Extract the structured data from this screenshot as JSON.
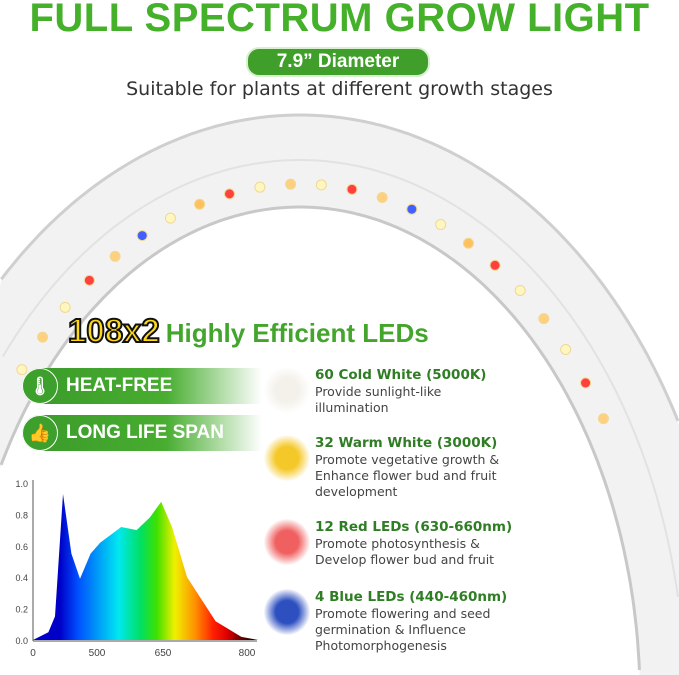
{
  "header": {
    "title": "FULL SPECTRUM GROW LIGHT",
    "badge": "7.9” Diameter",
    "subtitle": "Suitable for plants at different growth stages"
  },
  "leds": {
    "count": "108x2",
    "label": "Highly Efficient LEDs"
  },
  "badges": [
    {
      "icon": "thermometer-icon",
      "label": "HEAT-FREE"
    },
    {
      "icon": "thumbs-up-icon",
      "label": "LONG LIFE SPAN"
    }
  ],
  "features": [
    {
      "title": "60 Cold White (5000K)",
      "desc": "Provide sunlight-like illumination",
      "color": "#f3f1ea"
    },
    {
      "title": "32 Warm White (3000K)",
      "desc": "Promote vegetative growth & Enhance flower bud and fruit development",
      "color": "#f5c829"
    },
    {
      "title": "12 Red LEDs (630-660nm)",
      "desc": "Promote photosynthesis & Develop flower bud and fruit",
      "color": "#f06060"
    },
    {
      "title": "4 Blue LEDs (440-460nm)",
      "desc": "Promote flowering and seed germination & Influence Photomorphogenesis",
      "color": "#2d4fc0"
    }
  ],
  "chart_data": {
    "type": "area",
    "x_ticks": [
      "0",
      "500",
      "650",
      "800"
    ],
    "y_ticks": [
      "0.0",
      "0.2",
      "0.4",
      "0.6",
      "0.8",
      "1.0"
    ],
    "ylim": [
      0,
      1
    ],
    "points": [
      [
        0,
        0
      ],
      [
        120,
        0.05
      ],
      [
        172,
        0.15
      ],
      [
        234,
        0.93
      ],
      [
        300,
        0.55
      ],
      [
        367,
        0.39
      ],
      [
        450,
        0.55
      ],
      [
        507,
        0.62
      ],
      [
        555,
        0.72
      ],
      [
        590,
        0.7
      ],
      [
        620,
        0.78
      ],
      [
        646,
        0.88
      ],
      [
        666,
        0.72
      ],
      [
        693,
        0.4
      ],
      [
        744,
        0.12
      ],
      [
        790,
        0.02
      ],
      [
        820,
        0
      ]
    ],
    "gradient": [
      "#0000c8",
      "#0050ff",
      "#00e8f0",
      "#00e060",
      "#40e000",
      "#f0f000",
      "#ff9000",
      "#ff2000",
      "#e00000",
      "#600000",
      "#000000"
    ]
  }
}
